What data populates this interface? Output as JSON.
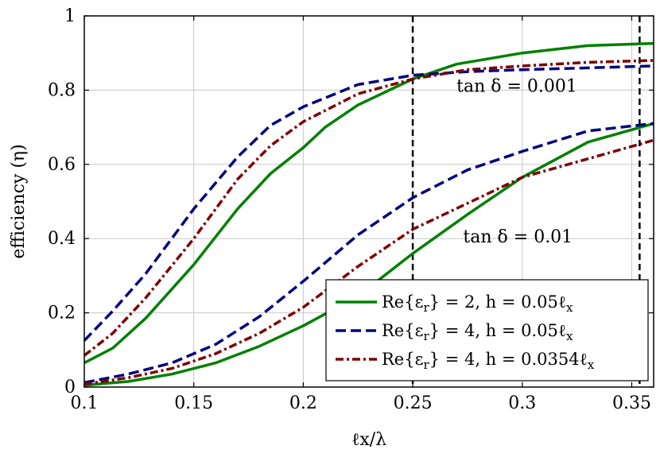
{
  "chart_data": {
    "type": "line",
    "xlabel": "ℓx/λ",
    "ylabel": "efficiency (η)",
    "xlim": [
      0.1,
      0.36
    ],
    "ylim": [
      0,
      1
    ],
    "xticks": [
      0.1,
      0.15,
      0.2,
      0.25,
      0.3,
      0.35
    ],
    "xtick_labels": [
      "0.1",
      "0.15",
      "0.2",
      "0.25",
      "0.3",
      "0.35"
    ],
    "yticks": [
      0,
      0.2,
      0.4,
      0.6,
      0.8,
      1
    ],
    "ytick_labels": [
      "0",
      "0.2",
      "0.4",
      "0.6",
      "0.8",
      "1"
    ],
    "grid": true,
    "legend_position": "bottom-right",
    "vlines": [
      0.25,
      0.3536
    ],
    "annotations": [
      {
        "text": "tan δ = 0.001",
        "x": 0.27,
        "y": 0.81
      },
      {
        "text": "tan δ = 0.01",
        "x": 0.273,
        "y": 0.405
      }
    ],
    "series": [
      {
        "name": "Re{εr} = 2, h = 0.05ℓx",
        "group": "tan δ = 0.001",
        "color": "#008000",
        "dash": "solid",
        "x": [
          0.1,
          0.113,
          0.128,
          0.15,
          0.17,
          0.185,
          0.2,
          0.21,
          0.225,
          0.25,
          0.27,
          0.3,
          0.33,
          0.36
        ],
        "y": [
          0.065,
          0.105,
          0.185,
          0.33,
          0.48,
          0.575,
          0.645,
          0.7,
          0.76,
          0.83,
          0.87,
          0.9,
          0.92,
          0.926
        ]
      },
      {
        "name": "Re{εr} = 4, h = 0.05ℓx",
        "group": "tan δ = 0.001",
        "color": "#00007f",
        "dash": "dashed",
        "x": [
          0.1,
          0.113,
          0.128,
          0.15,
          0.17,
          0.185,
          0.2,
          0.225,
          0.25,
          0.275,
          0.3,
          0.33,
          0.36
        ],
        "y": [
          0.125,
          0.205,
          0.305,
          0.48,
          0.62,
          0.705,
          0.755,
          0.815,
          0.84,
          0.85,
          0.855,
          0.86,
          0.865
        ]
      },
      {
        "name": "Re{εr} = 4, h = 0.0354ℓx",
        "group": "tan δ = 0.001",
        "color": "#7f0000",
        "dash": "dashdot",
        "x": [
          0.1,
          0.113,
          0.128,
          0.15,
          0.17,
          0.185,
          0.2,
          0.225,
          0.25,
          0.275,
          0.3,
          0.33,
          0.36
        ],
        "y": [
          0.085,
          0.145,
          0.24,
          0.4,
          0.56,
          0.65,
          0.715,
          0.79,
          0.83,
          0.855,
          0.865,
          0.875,
          0.88
        ]
      },
      {
        "name": "Re{εr} = 2, h = 0.05ℓx",
        "group": "tan δ = 0.01",
        "color": "#008000",
        "dash": "solid",
        "x": [
          0.1,
          0.12,
          0.14,
          0.16,
          0.18,
          0.2,
          0.225,
          0.25,
          0.275,
          0.3,
          0.33,
          0.36
        ],
        "y": [
          0.005,
          0.015,
          0.035,
          0.065,
          0.11,
          0.165,
          0.245,
          0.36,
          0.465,
          0.565,
          0.66,
          0.71
        ]
      },
      {
        "name": "Re{εr} = 4, h = 0.05ℓx",
        "group": "tan δ = 0.01",
        "color": "#00007f",
        "dash": "dashed",
        "x": [
          0.1,
          0.12,
          0.14,
          0.16,
          0.18,
          0.2,
          0.225,
          0.25,
          0.275,
          0.3,
          0.33,
          0.36
        ],
        "y": [
          0.012,
          0.035,
          0.065,
          0.115,
          0.19,
          0.285,
          0.41,
          0.51,
          0.585,
          0.635,
          0.69,
          0.71
        ]
      },
      {
        "name": "Re{εr} = 4, h = 0.0354ℓx",
        "group": "tan δ = 0.01",
        "color": "#7f0000",
        "dash": "dashdot",
        "x": [
          0.1,
          0.12,
          0.14,
          0.16,
          0.18,
          0.2,
          0.225,
          0.25,
          0.275,
          0.3,
          0.33,
          0.36
        ],
        "y": [
          0.008,
          0.025,
          0.05,
          0.09,
          0.145,
          0.215,
          0.325,
          0.425,
          0.495,
          0.565,
          0.615,
          0.665
        ]
      }
    ],
    "legend": [
      {
        "label_main": "Re{ε",
        "label_sub": "r",
        "label_rest": "} = 2, h = 0.05ℓ",
        "label_sub2": "x",
        "color": "#008000",
        "dash": "solid"
      },
      {
        "label_main": "Re{ε",
        "label_sub": "r",
        "label_rest": "} = 4, h = 0.05ℓ",
        "label_sub2": "x",
        "color": "#00007f",
        "dash": "dashed"
      },
      {
        "label_main": "Re{ε",
        "label_sub": "r",
        "label_rest": "} = 4, h = 0.0354ℓ",
        "label_sub2": "x",
        "color": "#7f0000",
        "dash": "dashdot"
      }
    ]
  }
}
